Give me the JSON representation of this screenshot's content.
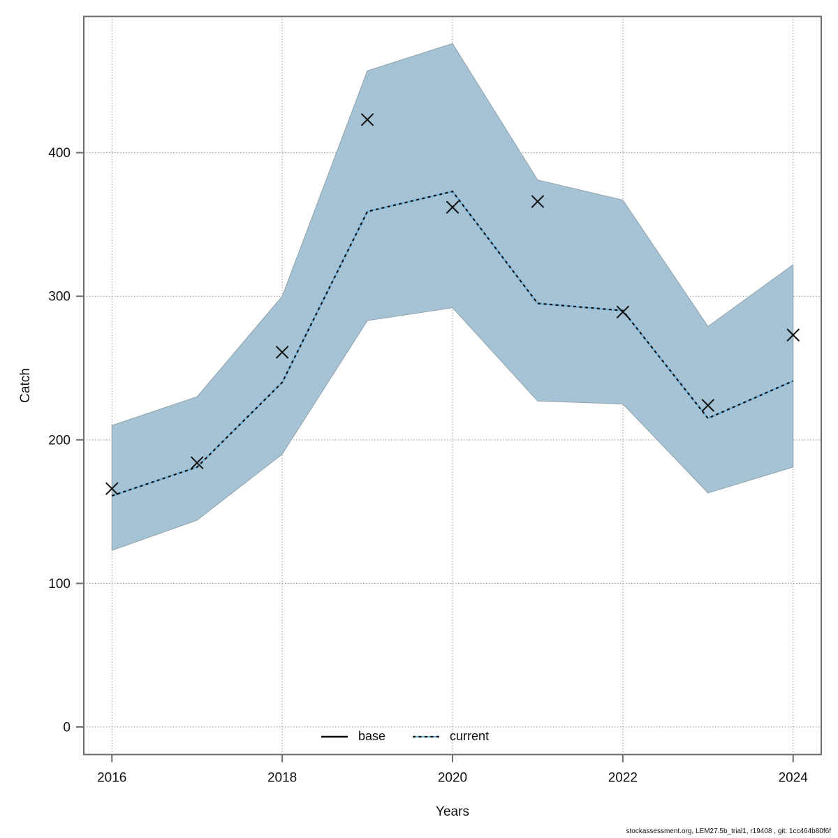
{
  "footer": {
    "text": "stockassessment.org, LEM27.5b_trial1, r19408 , git: 1cc464b80f6f"
  },
  "chart_data": {
    "type": "line",
    "title": "",
    "xlabel": "Years",
    "ylabel": "Catch",
    "x": [
      2016,
      2017,
      2018,
      2019,
      2020,
      2021,
      2022,
      2023,
      2024
    ],
    "series": [
      {
        "name": "current",
        "style": "dotted-line",
        "casing_color": "#74b2d8",
        "dash_color": "#111111",
        "values": [
          161,
          181,
          240,
          359,
          373,
          295,
          290,
          215,
          241
        ]
      },
      {
        "name": "observations",
        "style": "x-marker",
        "color": "#111111",
        "values": [
          166,
          184,
          261,
          423,
          362,
          366,
          289,
          224,
          273
        ]
      }
    ],
    "band": {
      "name": "current-confidence-band",
      "fill": "#a5c3d4",
      "edge": "#90a2ac",
      "low": [
        123,
        144,
        190,
        283,
        292,
        227,
        225,
        163,
        181
      ],
      "high": [
        210,
        230,
        300,
        457,
        476,
        381,
        367,
        279,
        322
      ]
    },
    "legend": [
      {
        "label": "base",
        "line": "solid",
        "color": "#000000"
      },
      {
        "label": "current",
        "line": "dotted",
        "color": "#74b2d8",
        "dash_color": "#111111"
      }
    ],
    "x_ticks": [
      2016,
      2018,
      2020,
      2022,
      2024
    ],
    "y_ticks": [
      0,
      100,
      200,
      300,
      400
    ],
    "xlim": [
      2015.67,
      2024.33
    ],
    "ylim": [
      -19.2,
      494.9
    ],
    "grid": true,
    "legend_position": "bottom-inside",
    "grid_color": "#8f8f8f",
    "frame_color": "#6e6e6e",
    "text_color": "#111111"
  }
}
